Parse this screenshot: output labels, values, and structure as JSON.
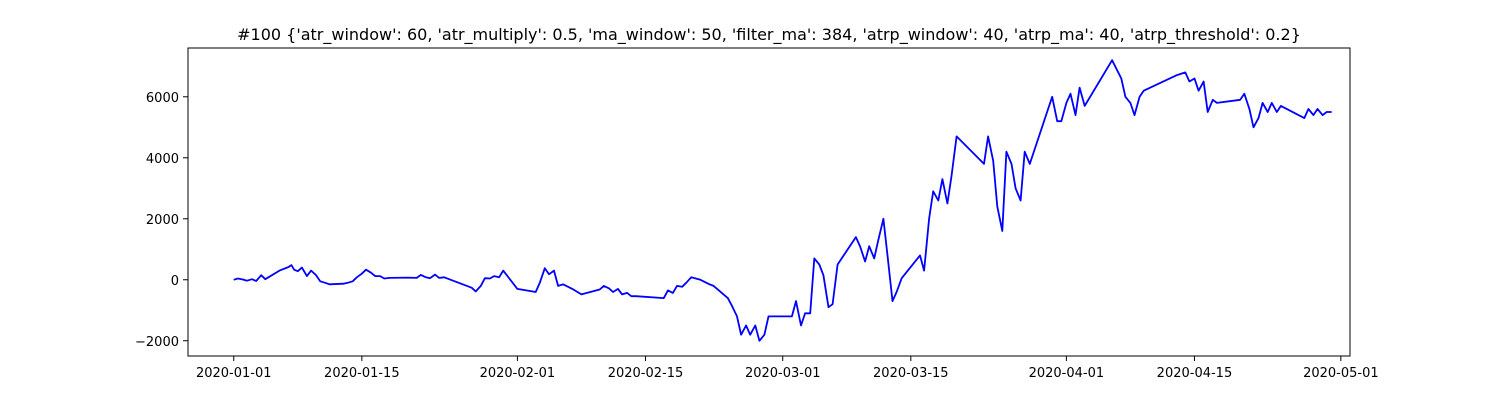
{
  "chart_data": {
    "type": "line",
    "title": "#100 {'atr_window': 60, 'atr_multiply': 0.5, 'ma_window': 50, 'filter_ma': 384, 'atrp_window': 40, 'atrp_ma': 40, 'atrp_threshold': 0.2}",
    "xlabel": "",
    "ylabel": "",
    "grid": false,
    "legend": "none",
    "xlim": [
      "2019-12-27",
      "2020-05-02"
    ],
    "ylim": [
      -2500,
      7600
    ],
    "x_ticks": [
      "2020-01-01",
      "2020-01-15",
      "2020-02-01",
      "2020-02-15",
      "2020-03-01",
      "2020-03-15",
      "2020-04-01",
      "2020-04-15",
      "2020-05-01"
    ],
    "y_ticks": [
      -2000,
      0,
      2000,
      4000,
      6000
    ],
    "x_tick_labels": [
      "2020-01-01",
      "2020-01-15",
      "2020-02-01",
      "2020-02-15",
      "2020-03-01",
      "2020-03-15",
      "2020-04-01",
      "2020-04-15",
      "2020-05-01"
    ],
    "y_tick_labels": [
      "−2000",
      "0",
      "2000",
      "4000",
      "6000"
    ],
    "series": [
      {
        "color": "#0000ff",
        "x": [
          "2020-01-01",
          "2020-01-01",
          "2020-01-02",
          "2020-01-02",
          "2020-01-03",
          "2020-01-03",
          "2020-01-04",
          "2020-01-04",
          "2020-01-06",
          "2020-01-07",
          "2020-01-07",
          "2020-01-07",
          "2020-01-08",
          "2020-01-08",
          "2020-01-09",
          "2020-01-09",
          "2020-01-10",
          "2020-01-10",
          "2020-01-11",
          "2020-01-11",
          "2020-01-13",
          "2020-01-13",
          "2020-01-14",
          "2020-01-14",
          "2020-01-15",
          "2020-01-15",
          "2020-01-16",
          "2020-01-16",
          "2020-01-17",
          "2020-01-17",
          "2020-01-18",
          "2020-01-20",
          "2020-01-21",
          "2020-01-21",
          "2020-01-22",
          "2020-01-22",
          "2020-01-23",
          "2020-01-23",
          "2020-01-24",
          "2020-01-27",
          "2020-01-27",
          "2020-01-28",
          "2020-01-28",
          "2020-01-29",
          "2020-01-29",
          "2020-01-30",
          "2020-01-30",
          "2020-02-01",
          "2020-02-03",
          "2020-02-03",
          "2020-02-04",
          "2020-02-04",
          "2020-02-05",
          "2020-02-05",
          "2020-02-06",
          "2020-02-07",
          "2020-02-08",
          "2020-02-10",
          "2020-02-10",
          "2020-02-11",
          "2020-02-11",
          "2020-02-12",
          "2020-02-12",
          "2020-02-13",
          "2020-02-13",
          "2020-02-14",
          "2020-02-17",
          "2020-02-17",
          "2020-02-18",
          "2020-02-18",
          "2020-02-19",
          "2020-02-19",
          "2020-02-20",
          "2020-02-21",
          "2020-02-22",
          "2020-02-22",
          "2020-02-24",
          "2020-02-24",
          "2020-02-25",
          "2020-02-25",
          "2020-02-26",
          "2020-02-26",
          "2020-02-27",
          "2020-02-27",
          "2020-02-28",
          "2020-02-28",
          "2020-03-02",
          "2020-03-02",
          "2020-03-03",
          "2020-03-03",
          "2020-03-04",
          "2020-03-04",
          "2020-03-05",
          "2020-03-05",
          "2020-03-06",
          "2020-03-06",
          "2020-03-07",
          "2020-03-09",
          "2020-03-09",
          "2020-03-10",
          "2020-03-10",
          "2020-03-11",
          "2020-03-11",
          "2020-03-12",
          "2020-03-12",
          "2020-03-13",
          "2020-03-13",
          "2020-03-14",
          "2020-03-16",
          "2020-03-16",
          "2020-03-17",
          "2020-03-17",
          "2020-03-18",
          "2020-03-18",
          "2020-03-19",
          "2020-03-19",
          "2020-03-20",
          "2020-03-23",
          "2020-03-23",
          "2020-03-24",
          "2020-03-24",
          "2020-03-25",
          "2020-03-25",
          "2020-03-26",
          "2020-03-26",
          "2020-03-27",
          "2020-03-27",
          "2020-03-28",
          "2020-03-30",
          "2020-03-30",
          "2020-03-31",
          "2020-03-31",
          "2020-04-01",
          "2020-04-01",
          "2020-04-02",
          "2020-04-02",
          "2020-04-03",
          "2020-04-06",
          "2020-04-07",
          "2020-04-07",
          "2020-04-08",
          "2020-04-08",
          "2020-04-09",
          "2020-04-09",
          "2020-04-13",
          "2020-04-14",
          "2020-04-14",
          "2020-04-15",
          "2020-04-15",
          "2020-04-16",
          "2020-04-16",
          "2020-04-17",
          "2020-04-17",
          "2020-04-20",
          "2020-04-20",
          "2020-04-21",
          "2020-04-21",
          "2020-04-22",
          "2020-04-22",
          "2020-04-23",
          "2020-04-23",
          "2020-04-24",
          "2020-04-24",
          "2020-04-27",
          "2020-04-27",
          "2020-04-28",
          "2020-04-28",
          "2020-04-29",
          "2020-04-29",
          "2020-04-30"
        ],
        "values": [
          0,
          40,
          10,
          -30,
          20,
          -40,
          150,
          20,
          300,
          420,
          480,
          330,
          280,
          400,
          120,
          300,
          150,
          -50,
          -100,
          -150,
          -130,
          -100,
          -50,
          80,
          200,
          330,
          230,
          120,
          120,
          40,
          60,
          70,
          60,
          160,
          80,
          50,
          170,
          60,
          80,
          -260,
          -380,
          -200,
          50,
          40,
          120,
          80,
          300,
          -300,
          -400,
          -100,
          380,
          180,
          300,
          -200,
          -150,
          -300,
          -480,
          -320,
          -200,
          -280,
          -400,
          -300,
          -480,
          -430,
          -540,
          -540,
          -600,
          -350,
          -430,
          -200,
          -230,
          -100,
          80,
          0,
          -150,
          -200,
          -600,
          -850,
          -1200,
          -1800,
          -1500,
          -1800,
          -1500,
          -2000,
          -1800,
          -1200,
          -1200,
          -700,
          -1500,
          -1100,
          -1100,
          700,
          500,
          150,
          -900,
          -800,
          500,
          1400,
          1100,
          600,
          1100,
          700,
          1300,
          2000,
          800,
          -700,
          -400,
          50,
          800,
          300,
          2000,
          2900,
          2600,
          3300,
          2500,
          3400,
          4700,
          3800,
          4700,
          3900,
          2400,
          1600,
          4200,
          3800,
          3000,
          2600,
          4200,
          3800,
          5600,
          6000,
          5200,
          5200,
          5800,
          6100,
          5400,
          6300,
          5700,
          7200,
          6600,
          6000,
          5800,
          5400,
          6000,
          6200,
          6700,
          6800,
          6500,
          6600,
          6200,
          6500,
          5500,
          5900,
          5800,
          5900,
          6100,
          5600,
          5000,
          5300,
          5800,
          5500,
          5800,
          5500,
          5700,
          5300,
          5600,
          5400,
          5600,
          5400,
          5500,
          5500
        ]
      }
    ]
  }
}
